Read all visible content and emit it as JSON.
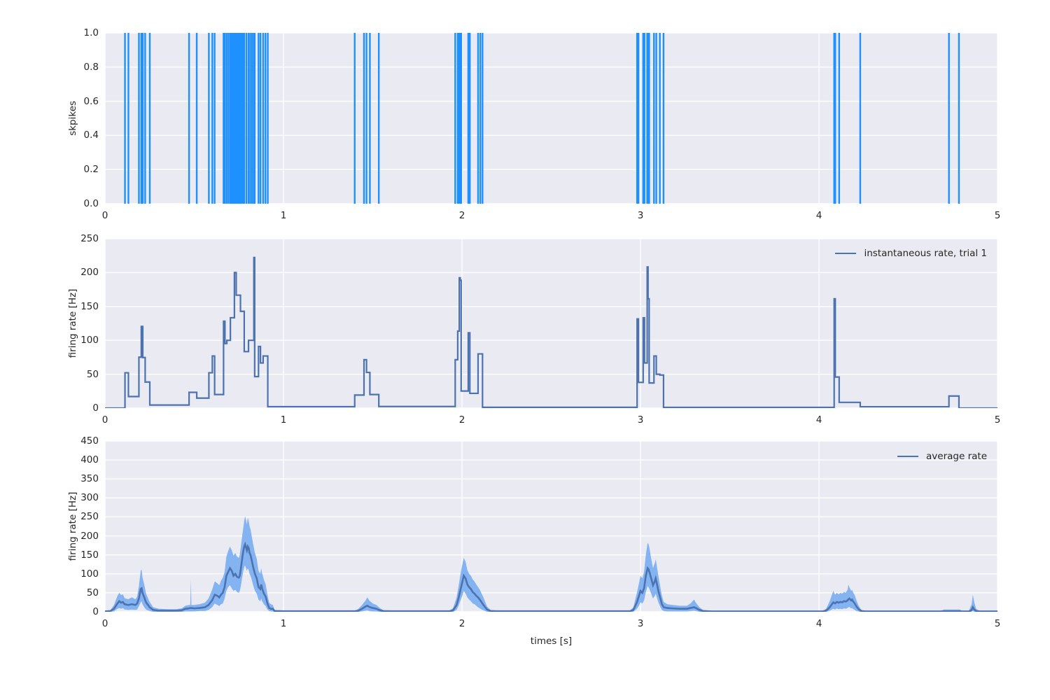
{
  "figure": {
    "background": "#ffffff",
    "axes_background": "#eaeaf2",
    "grid_color": "#ffffff",
    "text_color": "#262626",
    "spike_color": "#1e90ff",
    "line_color": "#4c72b0",
    "band_color": "#7aaef0"
  },
  "chart_data": [
    {
      "type": "event-raster",
      "ylabel": "skpikes",
      "xlim": [
        0,
        5
      ],
      "ylim": [
        0.0,
        1.0
      ],
      "xtick_vals": [
        0,
        1,
        2,
        3,
        4,
        5
      ],
      "xtick_labels": [
        "0",
        "1",
        "2",
        "3",
        "4",
        "5"
      ],
      "ytick_vals": [
        0.0,
        0.2,
        0.4,
        0.6,
        0.8,
        1.0
      ],
      "ytick_labels": [
        "0.0",
        "0.2",
        "0.4",
        "0.6",
        "0.8",
        "1.0"
      ],
      "grid": true,
      "color": "#1e90ff",
      "spike_times": [
        0.112,
        0.1312,
        0.19,
        0.2033,
        0.2116,
        0.225,
        0.251,
        0.471,
        0.514,
        0.582,
        0.6012,
        0.6142,
        0.6642,
        0.672,
        0.6825,
        0.6925,
        0.7025,
        0.71,
        0.7175,
        0.725,
        0.73,
        0.735,
        0.741,
        0.747,
        0.753,
        0.759,
        0.766,
        0.773,
        0.78,
        0.792,
        0.804,
        0.814,
        0.824,
        0.834,
        0.8385,
        0.86,
        0.871,
        0.886,
        0.899,
        0.912,
        1.399,
        1.451,
        1.465,
        1.484,
        1.534,
        1.962,
        1.976,
        1.9848,
        1.99,
        1.9953,
        2.035,
        2.044,
        2.09,
        2.1025,
        2.115,
        2.981,
        2.9886,
        3.015,
        3.0225,
        3.0375,
        3.0423,
        3.0485,
        3.0755,
        3.0885,
        3.1085,
        3.129,
        4.085,
        4.0912,
        4.113,
        4.231,
        4.728,
        4.784
      ]
    },
    {
      "type": "line",
      "step": true,
      "ylabel": "firing rate [Hz]",
      "legend": "instantaneous rate, trial 1",
      "legend_position": "upper right",
      "xlim": [
        0,
        5
      ],
      "ylim": [
        0,
        250
      ],
      "xtick_vals": [
        0,
        1,
        2,
        3,
        4,
        5
      ],
      "xtick_labels": [
        "0",
        "1",
        "2",
        "3",
        "4",
        "5"
      ],
      "ytick_vals": [
        0,
        50,
        100,
        150,
        200,
        250
      ],
      "ytick_labels": [
        "0",
        "50",
        "100",
        "150",
        "200",
        "250"
      ],
      "grid": true,
      "color": "#4c72b0",
      "series_rule": "instantaneous rate = 1/ISI between consecutive trial-1 spike times of chart 0, 0 Hz before first and after last spike",
      "spike_times_ref": 0
    },
    {
      "type": "area",
      "ylabel": "firing rate [Hz]",
      "xlabel": "times [s]",
      "legend": "average rate",
      "legend_position": "upper right",
      "xlim": [
        0,
        5
      ],
      "ylim": [
        0,
        450
      ],
      "xtick_vals": [
        0,
        1,
        2,
        3,
        4,
        5
      ],
      "xtick_labels": [
        "0",
        "1",
        "2",
        "3",
        "4",
        "5"
      ],
      "ytick_vals": [
        0,
        50,
        100,
        150,
        200,
        250,
        300,
        350,
        400,
        450
      ],
      "ytick_labels": [
        "0",
        "50",
        "100",
        "150",
        "200",
        "250",
        "300",
        "350",
        "400",
        "450"
      ],
      "grid": true,
      "line_color": "#4c72b0",
      "band_color": "#7aaef0",
      "samples_format": [
        "t",
        "mean",
        "lo",
        "hi"
      ],
      "samples": [
        [
          0.0,
          1,
          0,
          2
        ],
        [
          0.03,
          2,
          0,
          4
        ],
        [
          0.05,
          8,
          1,
          18
        ],
        [
          0.07,
          22,
          8,
          42
        ],
        [
          0.08,
          28,
          10,
          50
        ],
        [
          0.09,
          24,
          8,
          44
        ],
        [
          0.1,
          26,
          10,
          46
        ],
        [
          0.11,
          20,
          6,
          36
        ],
        [
          0.13,
          18,
          5,
          33
        ],
        [
          0.15,
          20,
          6,
          38
        ],
        [
          0.17,
          18,
          5,
          33
        ],
        [
          0.18,
          22,
          6,
          40
        ],
        [
          0.19,
          35,
          15,
          68
        ],
        [
          0.2,
          60,
          25,
          108
        ],
        [
          0.205,
          62,
          28,
          112
        ],
        [
          0.21,
          50,
          20,
          90
        ],
        [
          0.22,
          38,
          12,
          72
        ],
        [
          0.23,
          25,
          6,
          48
        ],
        [
          0.25,
          12,
          2,
          26
        ],
        [
          0.27,
          5,
          0,
          12
        ],
        [
          0.3,
          3,
          0,
          8
        ],
        [
          0.35,
          3,
          0,
          7
        ],
        [
          0.4,
          3,
          0,
          7
        ],
        [
          0.43,
          4,
          0,
          9
        ],
        [
          0.45,
          8,
          1,
          16
        ],
        [
          0.47,
          9,
          1,
          18
        ],
        [
          0.478,
          10,
          1,
          18
        ],
        [
          0.481,
          10,
          1,
          85
        ],
        [
          0.484,
          10,
          1,
          18
        ],
        [
          0.5,
          9,
          1,
          18
        ],
        [
          0.53,
          10,
          2,
          20
        ],
        [
          0.56,
          12,
          2,
          24
        ],
        [
          0.58,
          18,
          5,
          35
        ],
        [
          0.6,
          30,
          12,
          58
        ],
        [
          0.615,
          45,
          22,
          80
        ],
        [
          0.63,
          42,
          18,
          75
        ],
        [
          0.64,
          38,
          15,
          70
        ],
        [
          0.65,
          45,
          20,
          82
        ],
        [
          0.66,
          50,
          22,
          90
        ],
        [
          0.67,
          65,
          35,
          105
        ],
        [
          0.68,
          95,
          55,
          145
        ],
        [
          0.69,
          105,
          65,
          160
        ],
        [
          0.7,
          115,
          70,
          172
        ],
        [
          0.71,
          108,
          62,
          162
        ],
        [
          0.72,
          95,
          55,
          148
        ],
        [
          0.73,
          100,
          58,
          155
        ],
        [
          0.74,
          92,
          52,
          145
        ],
        [
          0.75,
          90,
          50,
          142
        ],
        [
          0.755,
          95,
          55,
          150
        ],
        [
          0.76,
          110,
          65,
          168
        ],
        [
          0.77,
          145,
          95,
          205
        ],
        [
          0.775,
          160,
          108,
          222
        ],
        [
          0.78,
          172,
          118,
          240
        ],
        [
          0.785,
          178,
          122,
          252
        ],
        [
          0.79,
          170,
          115,
          242
        ],
        [
          0.795,
          162,
          108,
          230
        ],
        [
          0.8,
          172,
          115,
          248
        ],
        [
          0.805,
          168,
          110,
          240
        ],
        [
          0.81,
          155,
          100,
          225
        ],
        [
          0.815,
          150,
          95,
          218
        ],
        [
          0.82,
          140,
          88,
          205
        ],
        [
          0.83,
          118,
          70,
          178
        ],
        [
          0.84,
          100,
          55,
          155
        ],
        [
          0.85,
          88,
          48,
          140
        ],
        [
          0.86,
          65,
          32,
          108
        ],
        [
          0.87,
          60,
          28,
          100
        ],
        [
          0.875,
          72,
          35,
          115
        ],
        [
          0.88,
          62,
          28,
          102
        ],
        [
          0.89,
          48,
          20,
          85
        ],
        [
          0.9,
          40,
          15,
          72
        ],
        [
          0.91,
          22,
          6,
          45
        ],
        [
          0.92,
          10,
          2,
          24
        ],
        [
          0.93,
          8,
          1,
          20
        ],
        [
          0.94,
          8,
          1,
          18
        ],
        [
          0.95,
          2,
          0,
          5
        ],
        [
          1.0,
          1.5,
          0,
          3
        ],
        [
          1.4,
          1.5,
          0,
          3
        ],
        [
          1.42,
          3,
          0,
          8
        ],
        [
          1.44,
          8,
          1,
          18
        ],
        [
          1.46,
          14,
          3,
          30
        ],
        [
          1.47,
          16,
          4,
          38
        ],
        [
          1.48,
          13,
          2,
          30
        ],
        [
          1.5,
          10,
          1,
          22
        ],
        [
          1.52,
          8,
          1,
          18
        ],
        [
          1.54,
          4,
          0,
          10
        ],
        [
          1.56,
          2,
          0,
          4
        ],
        [
          1.6,
          1.5,
          0,
          3
        ],
        [
          1.93,
          1.5,
          0,
          3
        ],
        [
          1.95,
          4,
          0,
          10
        ],
        [
          1.97,
          18,
          5,
          38
        ],
        [
          1.98,
          35,
          15,
          65
        ],
        [
          1.99,
          55,
          28,
          95
        ],
        [
          2.0,
          75,
          40,
          120
        ],
        [
          2.01,
          95,
          55,
          142
        ],
        [
          2.02,
          88,
          48,
          132
        ],
        [
          2.03,
          72,
          38,
          110
        ],
        [
          2.04,
          65,
          32,
          100
        ],
        [
          2.05,
          60,
          28,
          95
        ],
        [
          2.06,
          52,
          22,
          85
        ],
        [
          2.07,
          48,
          20,
          80
        ],
        [
          2.08,
          42,
          16,
          72
        ],
        [
          2.09,
          38,
          12,
          65
        ],
        [
          2.1,
          32,
          9,
          58
        ],
        [
          2.11,
          25,
          6,
          48
        ],
        [
          2.12,
          18,
          4,
          38
        ],
        [
          2.13,
          12,
          2,
          26
        ],
        [
          2.14,
          6,
          0,
          14
        ],
        [
          2.16,
          2,
          0,
          5
        ],
        [
          2.2,
          1.5,
          0,
          3
        ],
        [
          2.94,
          1.5,
          0,
          3
        ],
        [
          2.96,
          5,
          0,
          12
        ],
        [
          2.98,
          25,
          8,
          50
        ],
        [
          2.99,
          40,
          15,
          72
        ],
        [
          3.0,
          55,
          25,
          95
        ],
        [
          3.01,
          50,
          22,
          88
        ],
        [
          3.02,
          62,
          30,
          105
        ],
        [
          3.03,
          95,
          52,
          150
        ],
        [
          3.04,
          115,
          68,
          182
        ],
        [
          3.045,
          112,
          65,
          178
        ],
        [
          3.05,
          105,
          60,
          168
        ],
        [
          3.06,
          88,
          48,
          140
        ],
        [
          3.07,
          70,
          35,
          115
        ],
        [
          3.08,
          80,
          42,
          128
        ],
        [
          3.085,
          88,
          48,
          138
        ],
        [
          3.09,
          78,
          40,
          125
        ],
        [
          3.1,
          55,
          25,
          95
        ],
        [
          3.11,
          38,
          14,
          68
        ],
        [
          3.12,
          20,
          5,
          42
        ],
        [
          3.13,
          12,
          2,
          26
        ],
        [
          3.15,
          10,
          1,
          20
        ],
        [
          3.18,
          9,
          1,
          18
        ],
        [
          3.22,
          8,
          1,
          16
        ],
        [
          3.26,
          8,
          1,
          16
        ],
        [
          3.28,
          10,
          2,
          22
        ],
        [
          3.3,
          12,
          3,
          32
        ],
        [
          3.31,
          10,
          2,
          24
        ],
        [
          3.33,
          5,
          0,
          12
        ],
        [
          3.35,
          2,
          0,
          5
        ],
        [
          3.4,
          1,
          0,
          2
        ],
        [
          4.02,
          1,
          0,
          2
        ],
        [
          4.04,
          3,
          0,
          8
        ],
        [
          4.06,
          12,
          3,
          28
        ],
        [
          4.08,
          25,
          8,
          55
        ],
        [
          4.09,
          22,
          6,
          45
        ],
        [
          4.1,
          26,
          9,
          50
        ],
        [
          4.11,
          24,
          7,
          46
        ],
        [
          4.12,
          26,
          8,
          50
        ],
        [
          4.13,
          25,
          7,
          48
        ],
        [
          4.14,
          28,
          9,
          52
        ],
        [
          4.15,
          27,
          8,
          50
        ],
        [
          4.16,
          30,
          10,
          58
        ],
        [
          4.165,
          33,
          12,
          72
        ],
        [
          4.17,
          35,
          13,
          65
        ],
        [
          4.18,
          30,
          9,
          55
        ],
        [
          4.185,
          32,
          10,
          58
        ],
        [
          4.19,
          28,
          8,
          52
        ],
        [
          4.2,
          22,
          5,
          44
        ],
        [
          4.21,
          14,
          2,
          30
        ],
        [
          4.22,
          8,
          1,
          18
        ],
        [
          4.23,
          4,
          0,
          10
        ],
        [
          4.24,
          2,
          0,
          4
        ],
        [
          4.26,
          1,
          0,
          2
        ],
        [
          4.68,
          1,
          0,
          2
        ],
        [
          4.7,
          1.5,
          0,
          6
        ],
        [
          4.75,
          1.5,
          0,
          6
        ],
        [
          4.79,
          1.5,
          0,
          6
        ],
        [
          4.8,
          1,
          0,
          2
        ],
        [
          4.84,
          1,
          0,
          3
        ],
        [
          4.855,
          5,
          0,
          20
        ],
        [
          4.862,
          12,
          2,
          45
        ],
        [
          4.87,
          6,
          0,
          25
        ],
        [
          4.88,
          2,
          0,
          8
        ],
        [
          4.9,
          1,
          0,
          2
        ],
        [
          5.0,
          1,
          0,
          2
        ]
      ]
    }
  ]
}
